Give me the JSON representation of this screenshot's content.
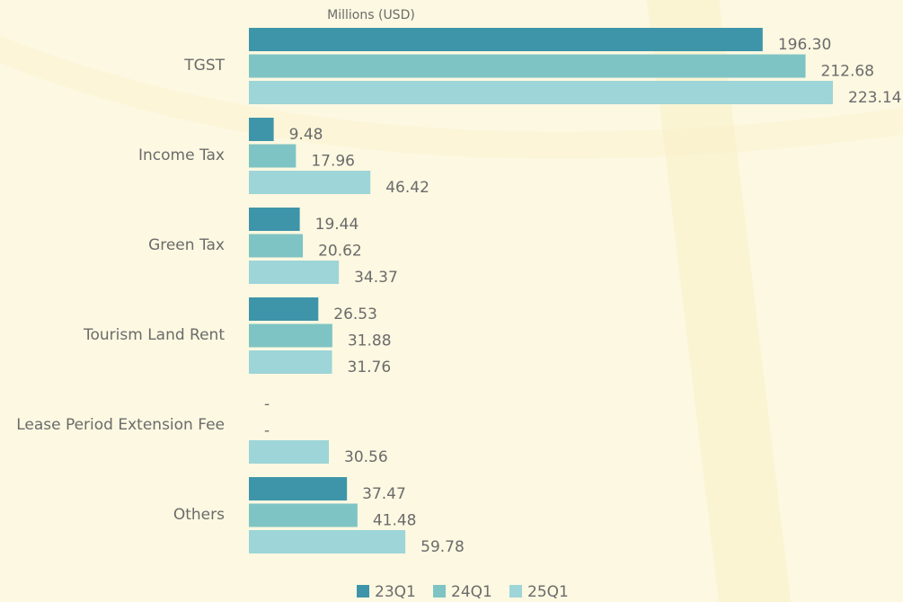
{
  "chart_data": {
    "type": "bar",
    "orientation": "horizontal",
    "x_label": "Millions (USD)",
    "categories": [
      "TGST",
      "Income Tax",
      "Green Tax",
      "Tourism Land Rent",
      "Lease Period Extension Fee",
      "Others"
    ],
    "series": [
      {
        "name": "23Q1",
        "color": "#3e95a9",
        "values": [
          196.3,
          9.48,
          19.44,
          26.53,
          null,
          37.47
        ],
        "value_labels": [
          "196.30",
          "9.48",
          "19.44",
          "26.53",
          "-",
          "37.47"
        ]
      },
      {
        "name": "24Q1",
        "color": "#7fc4c4",
        "values": [
          212.68,
          17.96,
          20.62,
          31.88,
          null,
          41.48
        ],
        "value_labels": [
          "212.68",
          "17.96",
          "20.62",
          "31.88",
          "-",
          "41.48"
        ]
      },
      {
        "name": "25Q1",
        "color": "#9dd5d8",
        "values": [
          223.14,
          46.42,
          34.37,
          31.76,
          30.56,
          59.78
        ],
        "value_labels": [
          "223.14",
          "46.42",
          "34.37",
          "31.76",
          "30.56",
          "59.78"
        ]
      }
    ],
    "legend": "bottom"
  }
}
